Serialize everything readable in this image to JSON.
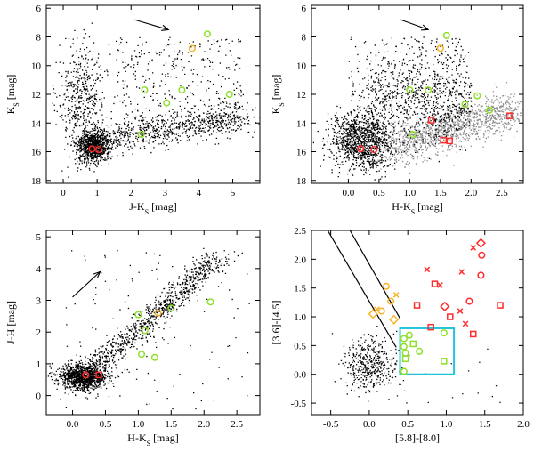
{
  "figure": {
    "panels": [
      {
        "id": "cmd-jk",
        "xlabel": "J-K",
        "xlabel_sub": "S",
        "xlabel_unit": " [mag]",
        "ylabel": "K",
        "ylabel_sub": "S",
        "ylabel_unit": " [mag]"
      },
      {
        "id": "cmd-hk",
        "xlabel": "H-K",
        "xlabel_sub": "S",
        "xlabel_unit": " [mag]",
        "ylabel": "K",
        "ylabel_sub": "S",
        "ylabel_unit": " [mag]"
      },
      {
        "id": "ccd-near-ir",
        "xlabel": "H-K",
        "xlabel_sub": "S",
        "xlabel_unit": " [mag]",
        "ylabel": "J-H [mag]",
        "ylabel_sub": "",
        "ylabel_unit": ""
      },
      {
        "id": "ccd-irac",
        "xlabel": "[5.8]-[8.0]",
        "xlabel_sub": "",
        "xlabel_unit": "",
        "ylabel": "[3.6]-[4.5]",
        "ylabel_sub": "",
        "ylabel_unit": ""
      }
    ]
  },
  "chart_data": [
    {
      "type": "scatter",
      "xlim": [
        -0.5,
        5.8
      ],
      "ylim": [
        18.2,
        5.8
      ],
      "y_inverted": true,
      "xticks": [
        0,
        1,
        2,
        3,
        4,
        5
      ],
      "yticks": [
        6,
        8,
        10,
        12,
        14,
        16,
        18
      ],
      "grid": false,
      "field_stars": {
        "color": "#000000",
        "description_points": "dense cloud of field stars"
      },
      "markers": [
        {
          "kind": "circle",
          "color": "#ff2a2a",
          "points": [
            [
              0.85,
              15.8
            ],
            [
              1.05,
              15.85
            ]
          ]
        },
        {
          "kind": "circle",
          "color": "#f7b529",
          "points": [
            [
              3.8,
              8.8
            ]
          ]
        },
        {
          "kind": "circle",
          "color": "#8ee02a",
          "points": [
            [
              4.25,
              7.8
            ],
            [
              2.4,
              11.7
            ],
            [
              3.5,
              11.7
            ],
            [
              4.9,
              12.0
            ],
            [
              3.05,
              12.6
            ],
            [
              2.3,
              14.8
            ]
          ]
        }
      ],
      "reddening_vector": {
        "from": [
          2.1,
          6.8
        ],
        "to": [
          3.1,
          7.5
        ]
      }
    },
    {
      "type": "scatter",
      "xlim": [
        -0.6,
        2.85
      ],
      "ylim": [
        18.2,
        5.8
      ],
      "y_inverted": true,
      "xticks": [
        0,
        0.5,
        1,
        1.5,
        2,
        2.5
      ],
      "yticks": [
        6,
        8,
        10,
        12,
        14,
        16,
        18
      ],
      "grid": false,
      "field_stars": {
        "colors": [
          "#000000",
          "#8c8c8c"
        ]
      },
      "markers": [
        {
          "kind": "circle",
          "color": "#ff2a2a",
          "points": [
            [
              0.2,
              15.8
            ],
            [
              0.42,
              15.85
            ]
          ]
        },
        {
          "kind": "square",
          "color": "#ff2a2a",
          "points": [
            [
              1.55,
              15.2
            ],
            [
              1.65,
              15.25
            ],
            [
              2.62,
              13.5
            ],
            [
              1.35,
              13.8
            ]
          ]
        },
        {
          "kind": "circle",
          "color": "#f7b529",
          "points": [
            [
              1.5,
              8.8
            ]
          ]
        },
        {
          "kind": "circle",
          "color": "#8ee02a",
          "points": [
            [
              1.6,
              7.9
            ],
            [
              1.0,
              11.7
            ],
            [
              1.3,
              11.7
            ],
            [
              2.1,
              12.1
            ],
            [
              1.9,
              12.7
            ],
            [
              2.3,
              13.1
            ],
            [
              1.05,
              14.8
            ]
          ]
        }
      ],
      "reddening_vector": {
        "from": [
          0.85,
          6.8
        ],
        "to": [
          1.3,
          7.5
        ]
      }
    },
    {
      "type": "scatter",
      "xlim": [
        -0.4,
        2.85
      ],
      "ylim": [
        -0.6,
        5.2
      ],
      "xticks": [
        0,
        0.5,
        1,
        1.5,
        2,
        2.5
      ],
      "yticks": [
        0,
        1,
        2,
        3,
        4,
        5
      ],
      "grid": false,
      "field_stars": {
        "color": "#000000"
      },
      "markers": [
        {
          "kind": "circle",
          "color": "#ff2a2a",
          "points": [
            [
              0.2,
              0.65
            ]
          ]
        },
        {
          "kind": "square",
          "color": "#ff2a2a",
          "points": [
            [
              0.4,
              0.65
            ]
          ]
        },
        {
          "kind": "circle",
          "color": "#f7b529",
          "points": [
            [
              1.3,
              2.6
            ]
          ]
        },
        {
          "kind": "circle",
          "color": "#8ee02a",
          "points": [
            [
              1.0,
              2.55
            ],
            [
              1.1,
              2.05
            ],
            [
              1.5,
              2.75
            ],
            [
              2.1,
              2.95
            ],
            [
              1.05,
              1.3
            ],
            [
              1.25,
              1.2
            ]
          ]
        }
      ],
      "reddening_vector": {
        "from": [
          0.0,
          3.1
        ],
        "to": [
          0.42,
          3.9
        ]
      }
    },
    {
      "type": "scatter",
      "xlim": [
        -0.75,
        2.0
      ],
      "ylim": [
        -0.7,
        2.5
      ],
      "xticks": [
        -0.5,
        0.0,
        0.5,
        1.0,
        1.5,
        2.0
      ],
      "yticks": [
        -0.5,
        0.0,
        0.5,
        1.0,
        1.5,
        2.0,
        2.5
      ],
      "grid": false,
      "field_stars": {
        "color": "#000000"
      },
      "lines": [
        {
          "from": [
            -0.54,
            2.5
          ],
          "to": [
            0.35,
            0.47
          ]
        },
        {
          "from": [
            -0.25,
            2.5
          ],
          "to": [
            0.4,
            0.97
          ]
        }
      ],
      "box": {
        "color": "#22c4dc",
        "x": [
          0.4,
          1.1
        ],
        "y": [
          0.0,
          0.8
        ]
      },
      "markers": [
        {
          "kind": "circle",
          "color": "#ff2a2a",
          "points": [
            [
              1.3,
              1.27
            ],
            [
              1.45,
              1.72
            ],
            [
              1.46,
              2.07
            ]
          ]
        },
        {
          "kind": "square",
          "color": "#ff2a2a",
          "points": [
            [
              0.85,
              1.57
            ],
            [
              0.62,
              1.2
            ],
            [
              0.8,
              0.82
            ],
            [
              1.05,
              1.0
            ],
            [
              1.35,
              0.7
            ],
            [
              1.7,
              1.2
            ]
          ]
        },
        {
          "kind": "diamond",
          "color": "#ff2a2a",
          "points": [
            [
              1.45,
              2.28
            ],
            [
              0.98,
              1.18
            ]
          ]
        },
        {
          "kind": "cross",
          "color": "#ff2a2a",
          "points": [
            [
              0.75,
              1.82
            ],
            [
              1.2,
              1.78
            ],
            [
              1.35,
              2.2
            ],
            [
              0.92,
              1.55
            ],
            [
              1.25,
              0.88
            ],
            [
              1.18,
              1.1
            ]
          ]
        },
        {
          "kind": "circle",
          "color": "#f7b529",
          "points": [
            [
              0.22,
              1.53
            ],
            [
              0.16,
              1.1
            ],
            [
              0.28,
              1.27
            ]
          ]
        },
        {
          "kind": "diamond",
          "color": "#f7b529",
          "points": [
            [
              0.05,
              1.05
            ],
            [
              0.32,
              0.95
            ]
          ]
        },
        {
          "kind": "cross",
          "color": "#f7b529",
          "points": [
            [
              0.35,
              1.38
            ],
            [
              0.1,
              1.13
            ]
          ]
        },
        {
          "kind": "circle",
          "color": "#8ee02a",
          "points": [
            [
              0.45,
              0.62
            ],
            [
              0.45,
              0.48
            ],
            [
              0.47,
              0.37
            ],
            [
              0.45,
              0.05
            ],
            [
              0.65,
              0.4
            ],
            [
              0.97,
              0.72
            ],
            [
              0.52,
              0.68
            ]
          ]
        },
        {
          "kind": "square",
          "color": "#8ee02a",
          "points": [
            [
              0.57,
              0.53
            ],
            [
              0.47,
              0.27
            ],
            [
              0.97,
              0.23
            ]
          ]
        }
      ]
    }
  ]
}
